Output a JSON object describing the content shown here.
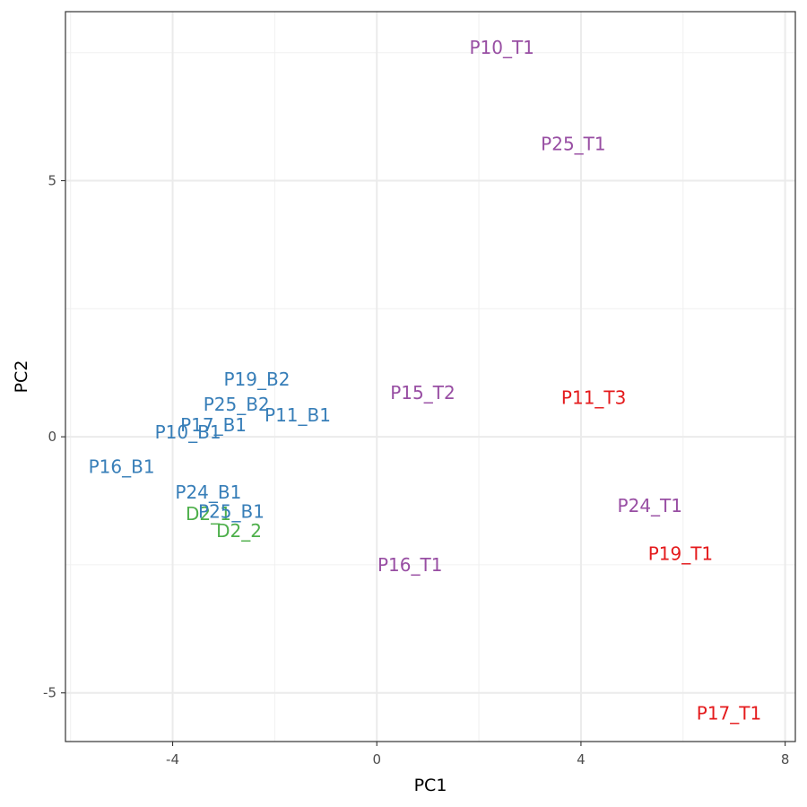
{
  "chart_data": {
    "type": "scatter",
    "title": "",
    "xlabel": "PC1",
    "ylabel": "PC2",
    "xlim": [
      -6.1,
      8.2
    ],
    "ylim": [
      -5.95,
      8.3
    ],
    "x_ticks": [
      -4,
      0,
      4,
      8
    ],
    "x_tick_labels": [
      "-4",
      "0",
      "4",
      "8"
    ],
    "y_ticks": [
      -5,
      0,
      5
    ],
    "y_tick_labels": [
      "-5",
      "0",
      "5"
    ],
    "grid": true,
    "legend": "none",
    "colors": {
      "blue": "#377eb8",
      "green": "#4daf4a",
      "purple": "#984ea3",
      "red": "#e41a1c"
    },
    "points": [
      {
        "label": "P10_T1",
        "x": 2.45,
        "y": 7.6,
        "color": "purple"
      },
      {
        "label": "P25_T1",
        "x": 3.85,
        "y": 5.72,
        "color": "purple"
      },
      {
        "label": "P19_B2",
        "x": -2.35,
        "y": 1.12,
        "color": "blue"
      },
      {
        "label": "P25_B2",
        "x": -2.75,
        "y": 0.63,
        "color": "blue"
      },
      {
        "label": "P15_T2",
        "x": 0.9,
        "y": 0.86,
        "color": "purple"
      },
      {
        "label": "P11_T3",
        "x": 4.25,
        "y": 0.76,
        "color": "red"
      },
      {
        "label": "P11_B1",
        "x": -1.55,
        "y": 0.42,
        "color": "blue"
      },
      {
        "label": "P17_B1",
        "x": -3.2,
        "y": 0.23,
        "color": "blue"
      },
      {
        "label": "P10_B1",
        "x": -3.7,
        "y": 0.09,
        "color": "blue"
      },
      {
        "label": "P16_B1",
        "x": -5.0,
        "y": -0.58,
        "color": "blue"
      },
      {
        "label": "P24_B1",
        "x": -3.3,
        "y": -1.08,
        "color": "blue"
      },
      {
        "label": "D2_1",
        "x": -3.3,
        "y": -1.5,
        "color": "green"
      },
      {
        "label": "P25_B1",
        "x": -2.85,
        "y": -1.46,
        "color": "blue"
      },
      {
        "label": "D2_2",
        "x": -2.7,
        "y": -1.84,
        "color": "green"
      },
      {
        "label": "P24_T1",
        "x": 5.35,
        "y": -1.35,
        "color": "purple"
      },
      {
        "label": "P19_T1",
        "x": 5.95,
        "y": -2.28,
        "color": "red"
      },
      {
        "label": "P16_T1",
        "x": 0.65,
        "y": -2.5,
        "color": "purple"
      },
      {
        "label": "P17_T1",
        "x": 6.9,
        "y": -5.4,
        "color": "red"
      }
    ]
  }
}
